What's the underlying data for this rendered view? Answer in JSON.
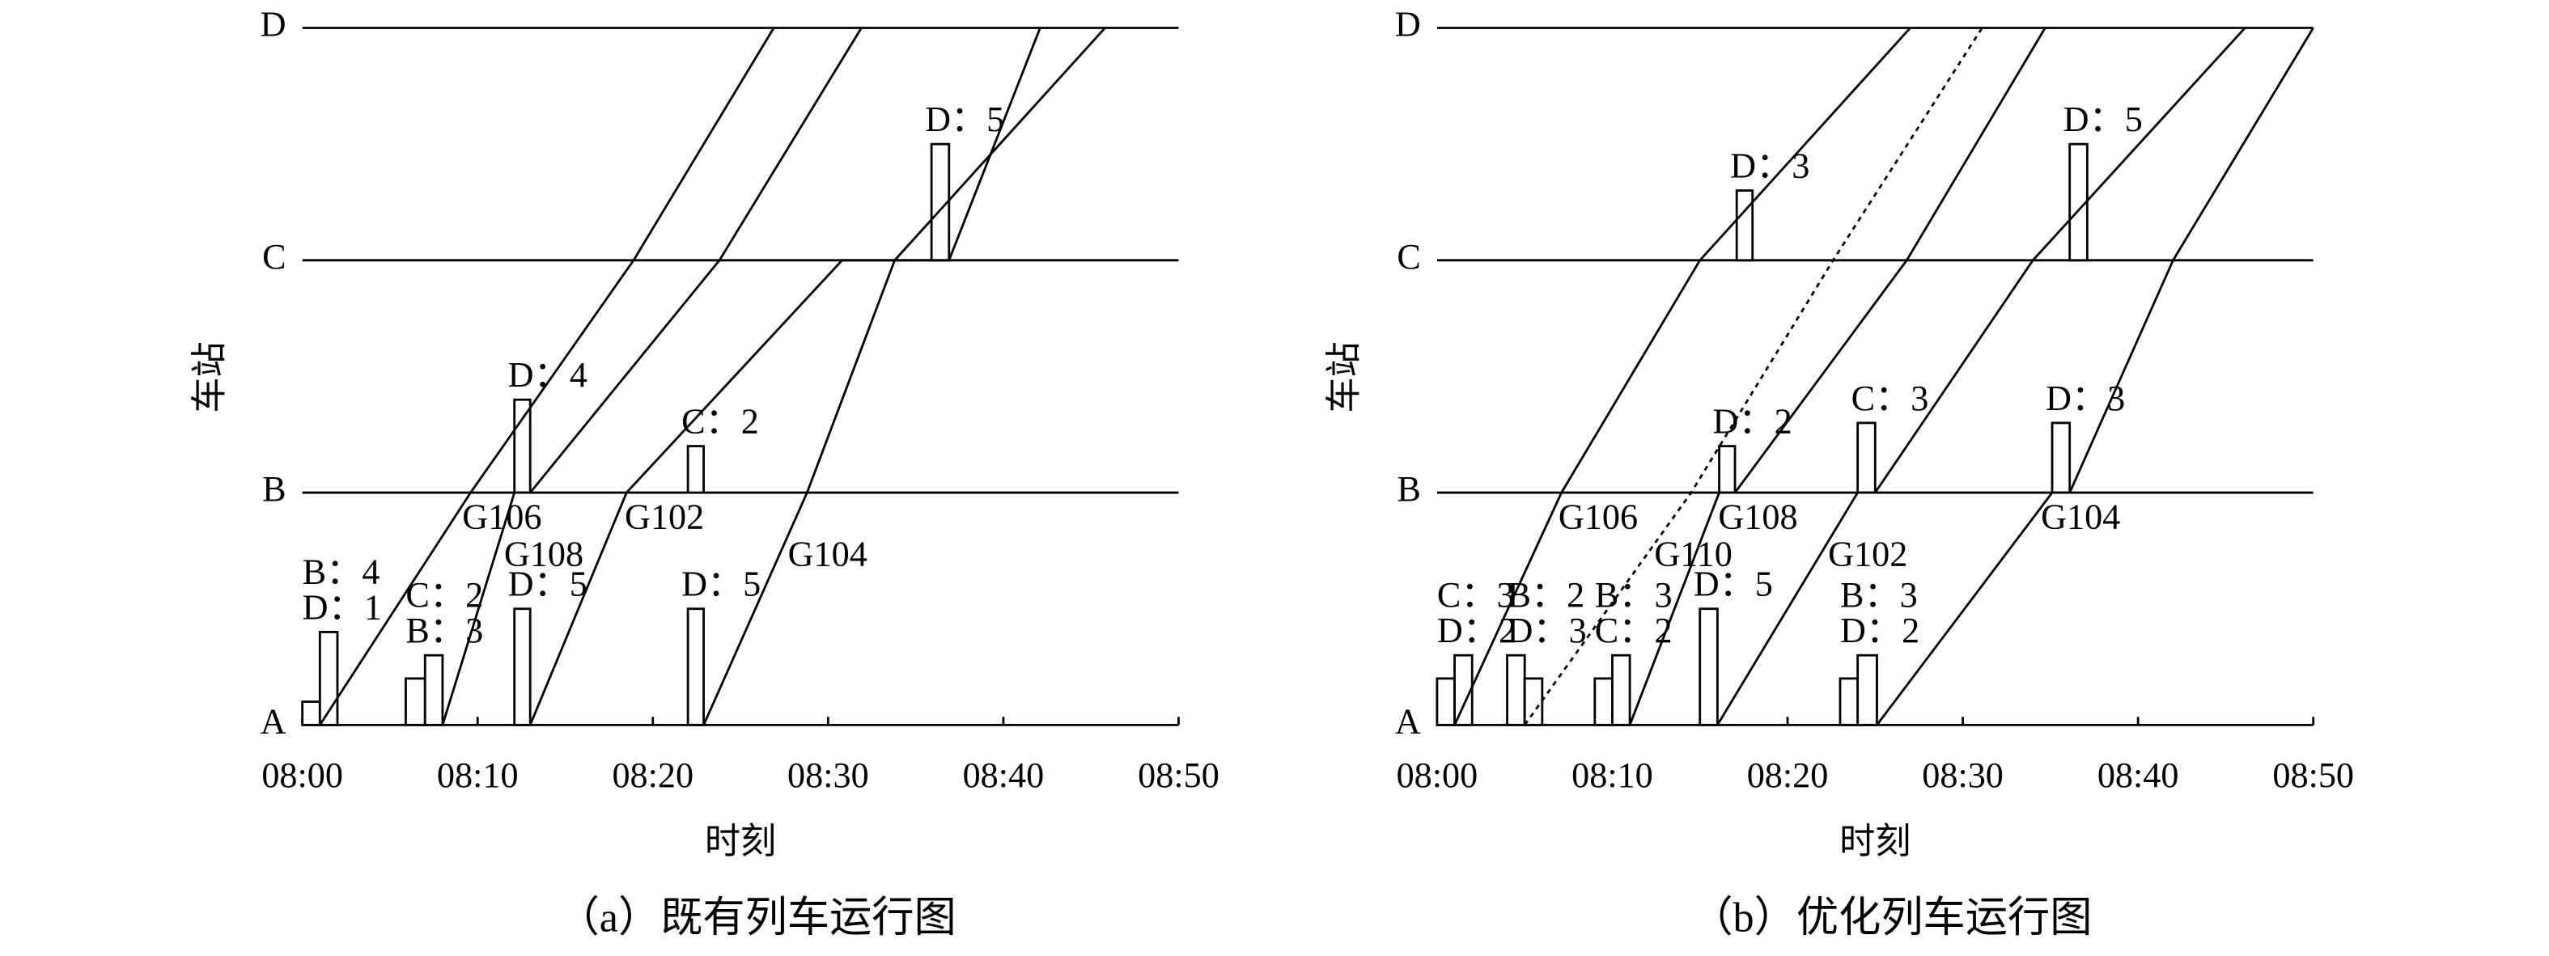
{
  "chart_data": [
    {
      "type": "line",
      "caption": "（a）既有列车运行图",
      "xlabel": "时刻",
      "ylabel": "车站",
      "stations": [
        "A",
        "B",
        "C",
        "D"
      ],
      "ylim": [
        0,
        3
      ],
      "xlim": [
        0,
        50
      ],
      "xticks": [
        {
          "value": 0,
          "label": "08:00"
        },
        {
          "value": 10,
          "label": "08:10"
        },
        {
          "value": 20,
          "label": "08:20"
        },
        {
          "value": 30,
          "label": "08:30"
        },
        {
          "value": 40,
          "label": "08:40"
        },
        {
          "value": 50,
          "label": "08:50"
        }
      ],
      "series": [
        {
          "name": "G106",
          "color": "#000000",
          "x": [
            1.0,
            9.6,
            18.9,
            26.9
          ],
          "y": [
            0,
            1,
            2,
            3
          ]
        },
        {
          "name": "G108",
          "color": "#000000",
          "x": [
            8.0,
            12.1,
            13.0,
            23.8,
            31.9
          ],
          "y": [
            0,
            1,
            1,
            2,
            3
          ]
        },
        {
          "name": "G102",
          "color": "#000000",
          "x": [
            13.0,
            18.5,
            30.8,
            35.9,
            36.9,
            42.1
          ],
          "y": [
            0,
            1,
            2,
            2,
            2,
            3
          ]
        },
        {
          "name": "G104",
          "color": "#000000",
          "x": [
            22.9,
            28.8,
            33.8,
            45.8
          ],
          "y": [
            0,
            1,
            2,
            3
          ]
        }
      ],
      "bars": [
        {
          "label": "B：4",
          "x": [
            0,
            1.0
          ],
          "station": 0,
          "height": 0.1
        },
        {
          "label": "D：1",
          "x": [
            1.0,
            2.0
          ],
          "station": 0,
          "height": 0.4
        },
        {
          "label": "C：2",
          "x": [
            5.9,
            7.0
          ],
          "station": 0,
          "height": 0.2
        },
        {
          "label": "B：3",
          "x": [
            7.0,
            8.0
          ],
          "station": 0,
          "height": 0.3
        },
        {
          "label": "D：5",
          "x": [
            12.1,
            13.0
          ],
          "station": 0,
          "height": 0.5
        },
        {
          "label": "D：5",
          "x": [
            22.0,
            22.9
          ],
          "station": 0,
          "height": 0.5
        },
        {
          "label": "D：4",
          "x": [
            12.1,
            13.0
          ],
          "station": 1,
          "height": 0.4
        },
        {
          "label": "C：2",
          "x": [
            22.0,
            22.9
          ],
          "station": 1,
          "height": 0.2
        },
        {
          "label": "D：5",
          "x": [
            35.9,
            36.9
          ],
          "station": 2,
          "height": 0.5
        }
      ]
    },
    {
      "type": "line",
      "caption": "（b）优化列车运行图",
      "xlabel": "时刻",
      "ylabel": "车站",
      "stations": [
        "A",
        "B",
        "C",
        "D"
      ],
      "ylim": [
        0,
        3
      ],
      "xlim": [
        0,
        50
      ],
      "xticks": [
        {
          "value": 0,
          "label": "08:00"
        },
        {
          "value": 10,
          "label": "08:10"
        },
        {
          "value": 20,
          "label": "08:20"
        },
        {
          "value": 30,
          "label": "08:30"
        },
        {
          "value": 40,
          "label": "08:40"
        },
        {
          "value": 50,
          "label": "08:50"
        }
      ],
      "series": [
        {
          "name": "G106",
          "color": "#000000",
          "x": [
            1.0,
            7.1,
            15.0,
            27.0
          ],
          "y": [
            0,
            1,
            2,
            3
          ]
        },
        {
          "name": "G110",
          "color": "#000000",
          "line_style": "dotted",
          "x": [
            5.0,
            14.5,
            22.6,
            31.1
          ],
          "y": [
            0,
            1,
            2,
            3
          ]
        },
        {
          "name": "G108",
          "color": "#000000",
          "x": [
            11.0,
            16.1,
            17.0,
            26.8,
            34.7
          ],
          "y": [
            0,
            1,
            1,
            2,
            3
          ]
        },
        {
          "name": "G102",
          "color": "#000000",
          "x": [
            16.0,
            24.0,
            25.0,
            34.0,
            46.1
          ],
          "y": [
            0,
            1,
            1,
            2,
            3
          ]
        },
        {
          "name": "G104",
          "color": "#000000",
          "x": [
            25.1,
            35.1,
            36.1,
            42.0,
            50.0
          ],
          "y": [
            0,
            1,
            1,
            2,
            3
          ]
        }
      ],
      "bars": [
        {
          "label": "C：3",
          "x": [
            0,
            1.0
          ],
          "station": 0,
          "height": 0.2
        },
        {
          "label": "D：2",
          "x": [
            1.0,
            2.0
          ],
          "station": 0,
          "height": 0.3
        },
        {
          "label": "B：2",
          "x": [
            4.0,
            5.0
          ],
          "station": 0,
          "height": 0.3
        },
        {
          "label": "D：3",
          "x": [
            5.0,
            6.0
          ],
          "station": 0,
          "height": 0.2
        },
        {
          "label": "B：3",
          "x": [
            9.0,
            10.0
          ],
          "station": 0,
          "height": 0.2
        },
        {
          "label": "C：2",
          "x": [
            10.0,
            11.0
          ],
          "station": 0,
          "height": 0.3
        },
        {
          "label": "D：5",
          "x": [
            15.0,
            16.0
          ],
          "station": 0,
          "height": 0.5
        },
        {
          "label": "B：3",
          "x": [
            23.0,
            24.0
          ],
          "station": 0,
          "height": 0.2
        },
        {
          "label": "D：2",
          "x": [
            24.0,
            25.1
          ],
          "station": 0,
          "height": 0.3
        },
        {
          "label": "D：2",
          "x": [
            16.1,
            17.0
          ],
          "station": 1,
          "height": 0.2
        },
        {
          "label": "C：3",
          "x": [
            24.0,
            25.0
          ],
          "station": 1,
          "height": 0.3
        },
        {
          "label": "D：3",
          "x": [
            35.1,
            36.1
          ],
          "station": 1,
          "height": 0.3
        },
        {
          "label": "D：3",
          "x": [
            17.1,
            18.0
          ],
          "station": 2,
          "height": 0.3
        },
        {
          "label": "D：5",
          "x": [
            36.1,
            37.1
          ],
          "station": 2,
          "height": 0.5
        }
      ]
    }
  ]
}
